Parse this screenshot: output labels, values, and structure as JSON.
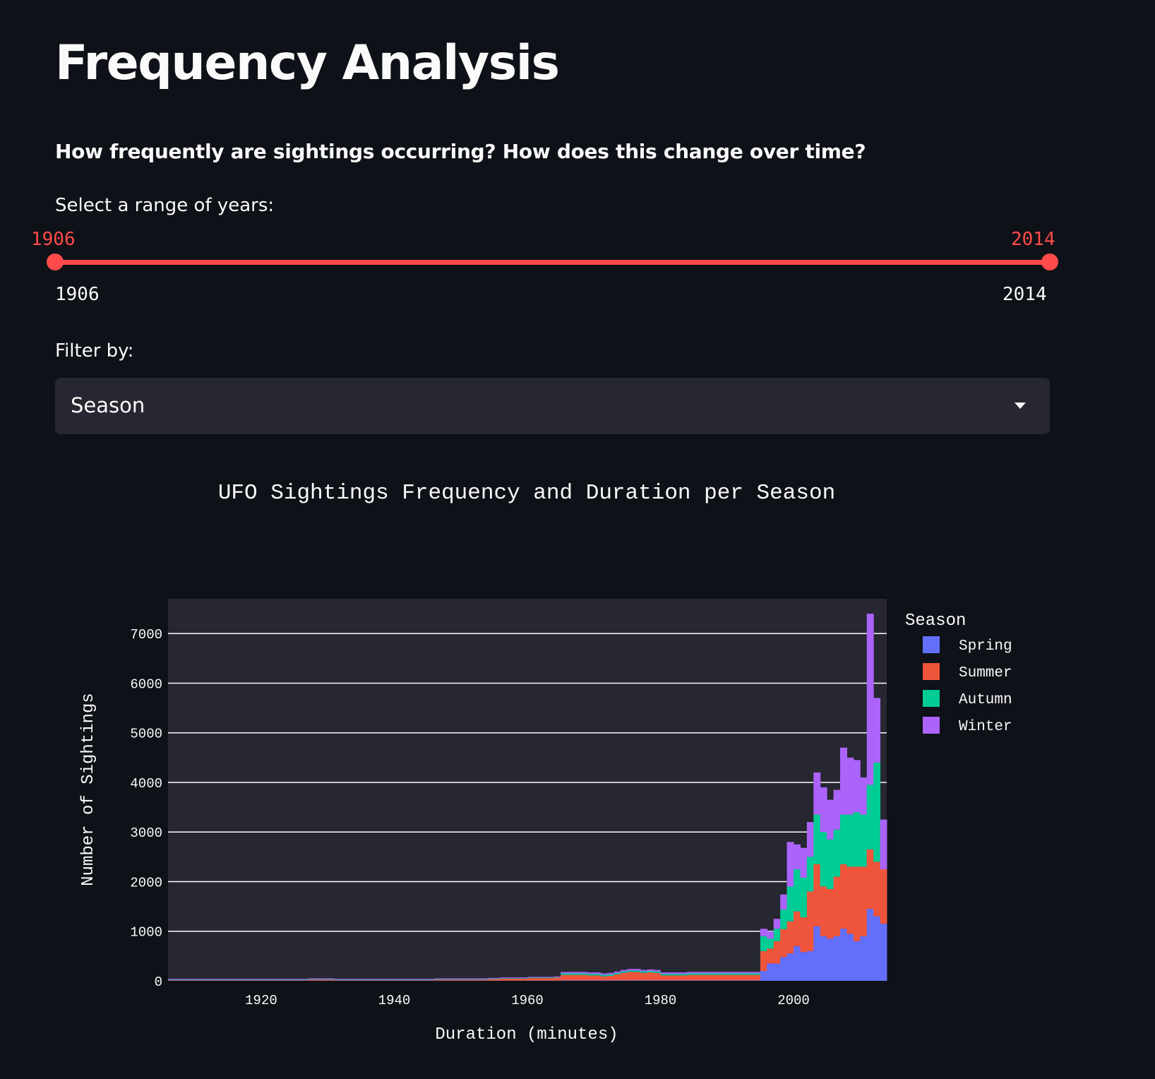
{
  "page": {
    "title": "Frequency Analysis",
    "subtitle": "How frequently are sightings occurring? How does this change over time?"
  },
  "slider": {
    "label": "Select a range of years:",
    "low_value": "1906",
    "high_value": "2014",
    "min_label": "1906",
    "max_label": "2014",
    "accent_color": "#ff4b4b"
  },
  "filter": {
    "label": "Filter by:",
    "selected": "Season",
    "icon": "chevron-down-icon"
  },
  "chart_data": {
    "type": "bar",
    "stacked": true,
    "title": "UFO Sightings Frequency and Duration per Season",
    "xlabel": "Duration (minutes)",
    "ylabel": "Number of Sightings",
    "xlim": [
      1906,
      2014
    ],
    "ylim": [
      0,
      7700
    ],
    "x_ticks": [
      "1920",
      "1940",
      "1960",
      "1980",
      "2000"
    ],
    "y_ticks": [
      "0",
      "1000",
      "2000",
      "3000",
      "4000",
      "5000",
      "6000",
      "7000"
    ],
    "grid": true,
    "legend_title": "Season",
    "legend_position": "right",
    "x": [
      1906,
      1907,
      1908,
      1909,
      1910,
      1911,
      1912,
      1913,
      1914,
      1915,
      1916,
      1917,
      1918,
      1919,
      1920,
      1921,
      1922,
      1923,
      1924,
      1925,
      1926,
      1927,
      1928,
      1929,
      1930,
      1931,
      1932,
      1933,
      1934,
      1935,
      1936,
      1937,
      1938,
      1939,
      1940,
      1941,
      1942,
      1943,
      1944,
      1945,
      1946,
      1947,
      1948,
      1949,
      1950,
      1951,
      1952,
      1953,
      1954,
      1955,
      1956,
      1957,
      1958,
      1959,
      1960,
      1961,
      1962,
      1963,
      1964,
      1965,
      1966,
      1967,
      1968,
      1969,
      1970,
      1971,
      1972,
      1973,
      1974,
      1975,
      1976,
      1977,
      1978,
      1979,
      1980,
      1981,
      1982,
      1983,
      1984,
      1985,
      1986,
      1987,
      1988,
      1989,
      1990,
      1991,
      1992,
      1993,
      1994,
      1995,
      1996,
      1997,
      1998,
      1999,
      2000,
      2001,
      2002,
      2003,
      2004,
      2005,
      2006,
      2007,
      2008,
      2009,
      2010,
      2011,
      2012,
      2013
    ],
    "series": [
      {
        "name": "Spring",
        "color": "#636efa",
        "values": [
          5,
          5,
          5,
          5,
          5,
          5,
          5,
          5,
          5,
          5,
          5,
          5,
          5,
          5,
          5,
          5,
          5,
          5,
          5,
          5,
          5,
          5,
          5,
          5,
          5,
          5,
          5,
          5,
          5,
          5,
          5,
          5,
          5,
          5,
          5,
          5,
          5,
          5,
          5,
          5,
          5,
          5,
          5,
          5,
          5,
          5,
          5,
          5,
          5,
          5,
          5,
          5,
          5,
          5,
          5,
          5,
          5,
          5,
          5,
          10,
          10,
          10,
          10,
          10,
          10,
          10,
          10,
          10,
          10,
          10,
          10,
          10,
          10,
          10,
          10,
          10,
          10,
          10,
          10,
          10,
          10,
          10,
          10,
          10,
          10,
          10,
          10,
          10,
          10,
          200,
          350,
          350,
          480,
          550,
          700,
          580,
          600,
          1100,
          900,
          850,
          900,
          1050,
          950,
          800,
          900,
          1450,
          1300,
          1150
        ]
      },
      {
        "name": "Summer",
        "color": "#ef553b",
        "values": [
          10,
          10,
          10,
          10,
          10,
          10,
          10,
          10,
          10,
          10,
          10,
          10,
          10,
          10,
          10,
          10,
          10,
          10,
          10,
          10,
          10,
          20,
          20,
          20,
          20,
          10,
          10,
          10,
          10,
          10,
          10,
          10,
          10,
          10,
          10,
          10,
          10,
          10,
          10,
          10,
          20,
          20,
          20,
          20,
          20,
          20,
          20,
          20,
          30,
          30,
          40,
          40,
          40,
          40,
          50,
          50,
          50,
          50,
          60,
          110,
          110,
          110,
          110,
          100,
          100,
          80,
          90,
          120,
          150,
          170,
          170,
          150,
          160,
          150,
          100,
          100,
          100,
          100,
          110,
          110,
          110,
          110,
          110,
          110,
          110,
          110,
          110,
          110,
          110,
          400,
          300,
          450,
          560,
          650,
          700,
          700,
          1200,
          1250,
          1000,
          1000,
          1200,
          1300,
          1350,
          1500,
          1400,
          1200,
          1100,
          1100
        ]
      },
      {
        "name": "Autumn",
        "color": "#00cc96",
        "values": [
          10,
          10,
          10,
          10,
          10,
          10,
          10,
          10,
          10,
          10,
          10,
          10,
          10,
          10,
          10,
          10,
          10,
          10,
          10,
          10,
          10,
          10,
          10,
          10,
          10,
          10,
          10,
          10,
          10,
          10,
          10,
          10,
          10,
          10,
          10,
          10,
          10,
          10,
          10,
          10,
          10,
          10,
          10,
          10,
          10,
          10,
          10,
          10,
          10,
          10,
          10,
          10,
          10,
          10,
          10,
          10,
          10,
          10,
          10,
          30,
          30,
          30,
          30,
          30,
          30,
          30,
          30,
          30,
          30,
          30,
          30,
          30,
          30,
          30,
          30,
          30,
          30,
          30,
          30,
          30,
          30,
          30,
          30,
          30,
          30,
          30,
          30,
          30,
          30,
          300,
          200,
          250,
          400,
          700,
          850,
          800,
          700,
          1000,
          1100,
          1000,
          950,
          1000,
          1050,
          1100,
          1050,
          1300,
          2000,
          0
        ]
      },
      {
        "name": "Winter",
        "color": "#ab63fa",
        "values": [
          15,
          15,
          15,
          15,
          15,
          15,
          15,
          15,
          15,
          15,
          15,
          15,
          15,
          15,
          15,
          15,
          15,
          15,
          15,
          15,
          15,
          15,
          15,
          15,
          15,
          15,
          15,
          15,
          15,
          15,
          15,
          15,
          15,
          15,
          15,
          15,
          15,
          15,
          15,
          15,
          15,
          15,
          15,
          15,
          15,
          15,
          15,
          15,
          15,
          15,
          15,
          15,
          15,
          15,
          15,
          15,
          15,
          15,
          15,
          30,
          30,
          30,
          30,
          30,
          30,
          30,
          30,
          30,
          30,
          30,
          30,
          30,
          30,
          30,
          30,
          30,
          30,
          30,
          30,
          30,
          30,
          30,
          30,
          30,
          30,
          30,
          30,
          30,
          30,
          150,
          150,
          200,
          300,
          900,
          500,
          600,
          700,
          850,
          900,
          800,
          800,
          1350,
          1150,
          1050,
          750,
          3450,
          1300,
          1000
        ]
      }
    ]
  }
}
